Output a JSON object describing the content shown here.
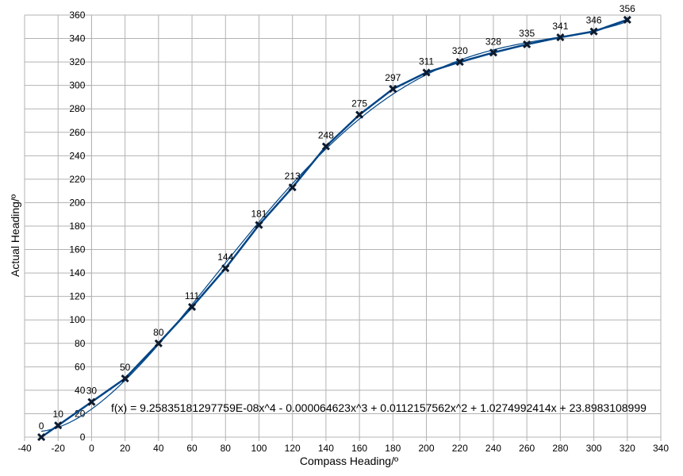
{
  "chart_data": {
    "type": "scatter",
    "xlabel": "Compass Heading/º",
    "ylabel": "Actual Heading/º",
    "xlim": [
      -40,
      340
    ],
    "ylim": [
      0,
      360
    ],
    "xticks": [
      -40,
      -20,
      0,
      20,
      40,
      60,
      80,
      100,
      120,
      140,
      160,
      180,
      200,
      220,
      240,
      260,
      280,
      300,
      320,
      340
    ],
    "yticks": [
      0,
      20,
      40,
      60,
      80,
      100,
      120,
      140,
      160,
      180,
      200,
      220,
      240,
      260,
      280,
      300,
      320,
      340,
      360
    ],
    "grid": true,
    "x": [
      -30,
      -20,
      0,
      20,
      40,
      60,
      80,
      100,
      120,
      140,
      160,
      180,
      200,
      220,
      240,
      260,
      280,
      300,
      320
    ],
    "y": [
      0,
      10,
      30,
      50,
      80,
      111,
      144,
      181,
      213,
      248,
      275,
      297,
      311,
      320,
      328,
      335,
      341,
      346,
      356
    ],
    "data_labels": [
      "0",
      "10",
      "30",
      "50",
      "80",
      "111",
      "144",
      "181",
      "213",
      "248",
      "275",
      "297",
      "311",
      "320",
      "328",
      "335",
      "341",
      "346",
      "356"
    ],
    "marker": "x",
    "line_color": "#004586",
    "trendline": {
      "type": "polynomial",
      "degree": 4,
      "coefficients": [
        9.25835181297759e-08,
        -6.4623e-05,
        0.0112157562,
        1.0274992414,
        23.8983108999
      ],
      "equation_label": "f(x) = 9.25835181297759E-08x^4 - 0.000064623x^3 + 0.0112157562x^2 + 1.0274992414x + 23.8983108999",
      "color": "#004586"
    }
  }
}
